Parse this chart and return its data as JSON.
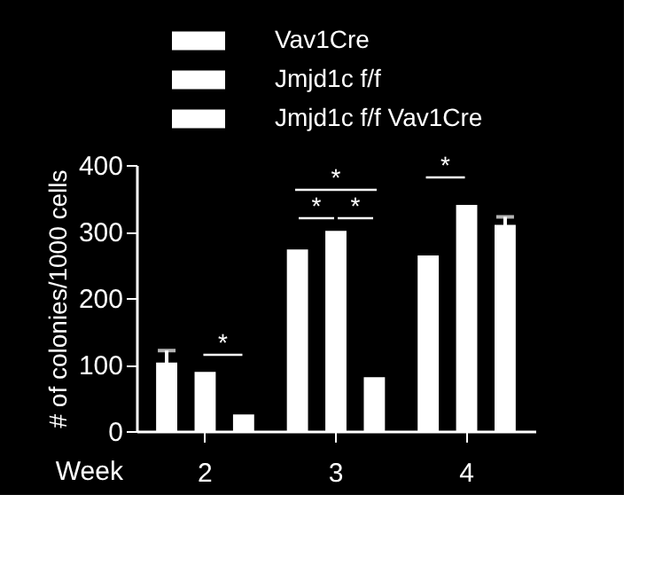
{
  "chart_data": {
    "type": "bar",
    "xlabel": "Week",
    "ylabel": "# of colonies/1000 cells",
    "categories": [
      "2",
      "3",
      "4"
    ],
    "series": [
      {
        "name": "Vav1Cre",
        "color": "#ffffff",
        "values": [
          103,
          273,
          264
        ],
        "errors": [
          18,
          null,
          null
        ]
      },
      {
        "name": "Jmjd1c f/f",
        "color": "#ffffff",
        "values": [
          89,
          301,
          340
        ],
        "errors": [
          null,
          null,
          null
        ]
      },
      {
        "name": "Jmjd1c f/f Vav1Cre",
        "color": "#ffffff",
        "values": [
          25,
          81,
          310
        ],
        "errors": [
          null,
          null,
          12
        ]
      }
    ],
    "ylim": [
      0,
      400
    ],
    "yticks": [
      0,
      100,
      200,
      300,
      400
    ],
    "grid": false,
    "legend": "top",
    "annotations": [
      "*",
      "*",
      "*",
      "*",
      "*"
    ]
  }
}
